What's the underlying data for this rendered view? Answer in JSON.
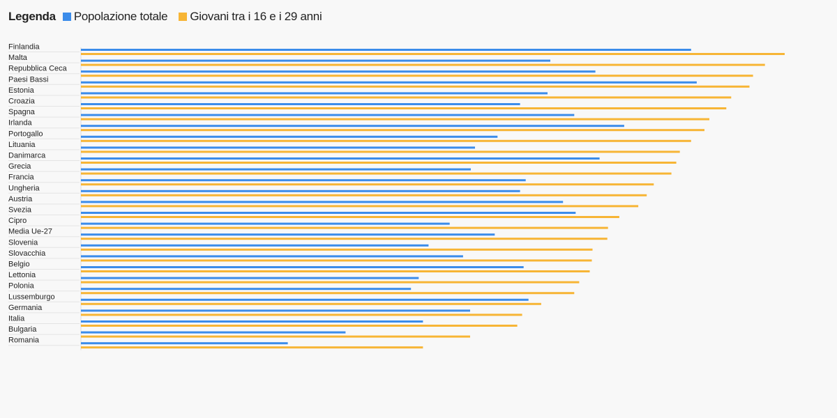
{
  "legend": {
    "title": "Legenda",
    "items": [
      {
        "label": "Popolazione totale",
        "color": "#3b8cea"
      },
      {
        "label": "Giovani tra i 16 e i 29 anni",
        "color": "#f7b535"
      }
    ]
  },
  "chart_data": {
    "type": "bar",
    "orientation": "horizontal",
    "grid": false,
    "legend_position": "top-left",
    "xlim": [
      0,
      100
    ],
    "categories": [
      "Finlandia",
      "Malta",
      "Repubblica Ceca",
      "Paesi Bassi",
      "Estonia",
      "Croazia",
      "Spagna",
      "Irlanda",
      "Portogallo",
      "Lituania",
      "Danimarca",
      "Grecia",
      "Francia",
      "Ungheria",
      "Austria",
      "Svezia",
      "Cipro",
      "Media Ue-27",
      "Slovenia",
      "Slovacchia",
      "Belgio",
      "Lettonia",
      "Polonia",
      "Lussemburgo",
      "Germania",
      "Italia",
      "Bulgaria",
      "Romania"
    ],
    "series": [
      {
        "name": "Popolazione totale",
        "color": "#3b8cea",
        "values": [
          86.7,
          66.7,
          73.1,
          87.5,
          66.3,
          62.4,
          70.1,
          77.2,
          59.2,
          56.0,
          73.7,
          55.4,
          63.2,
          62.4,
          68.5,
          70.3,
          52.4,
          58.8,
          49.4,
          54.3,
          62.9,
          48.0,
          46.9,
          63.6,
          55.3,
          48.6,
          37.6,
          29.4
        ]
      },
      {
        "name": "Giovani tra i 16 e i 29 anni",
        "color": "#f7b535",
        "values": [
          100.0,
          97.2,
          95.5,
          95.0,
          92.4,
          91.7,
          89.3,
          88.6,
          86.7,
          85.1,
          84.6,
          83.9,
          81.4,
          80.4,
          79.2,
          76.5,
          74.9,
          74.8,
          72.7,
          72.6,
          72.3,
          70.8,
          70.1,
          65.4,
          62.7,
          62.0,
          55.3,
          48.6
        ]
      }
    ]
  }
}
